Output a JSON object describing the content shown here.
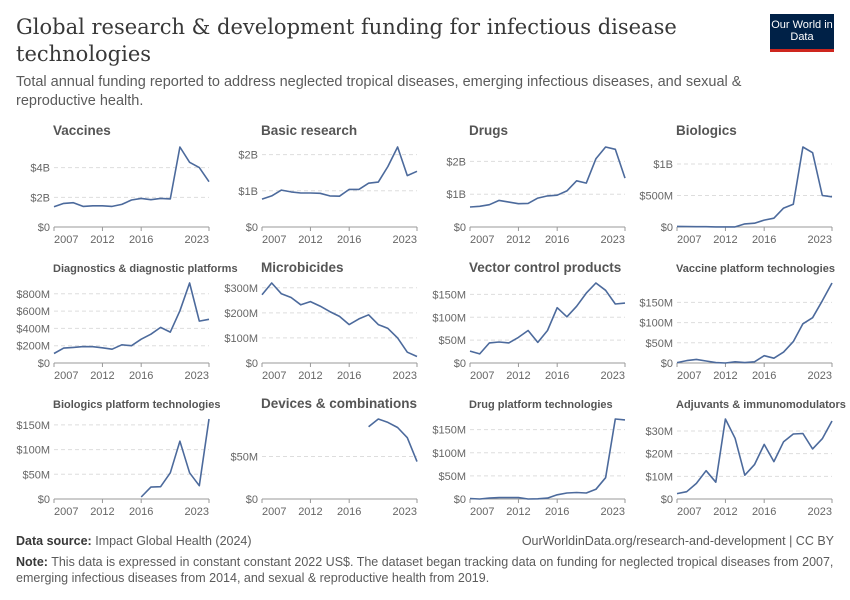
{
  "header": {
    "title": "Global research & development funding for infectious disease technologies",
    "subtitle": "Total annual funding reported to address neglected tropical diseases, emerging infectious diseases, and sexual & reproductive health.",
    "logo_text": "Our World in Data"
  },
  "footer": {
    "source_label": "Data source:",
    "source": "Impact Global Health (2024)",
    "url": "OurWorldinData.org/research-and-development | CC BY",
    "note_label": "Note:",
    "note": "This data is expressed in constant constant 2022 US$. The dataset began tracking data on funding for neglected tropical diseases from 2007, emerging infectious diseases from 2014, and sexual & reproductive health from 2019."
  },
  "colors": {
    "line": "#4c6a9c",
    "grid": "#dddddd",
    "axis": "#999999",
    "text": "#666666"
  },
  "chart_data": [
    {
      "type": "line",
      "title": "Vaccines",
      "x": [
        2007,
        2008,
        2009,
        2010,
        2011,
        2012,
        2013,
        2014,
        2015,
        2016,
        2017,
        2018,
        2019,
        2020,
        2021,
        2022,
        2023
      ],
      "values": [
        1360000000.0,
        1590000000.0,
        1640000000.0,
        1390000000.0,
        1430000000.0,
        1430000000.0,
        1390000000.0,
        1520000000.0,
        1820000000.0,
        1930000000.0,
        1840000000.0,
        1930000000.0,
        1890000000.0,
        5390000000.0,
        4360000000.0,
        4000000000.0,
        3050000000.0
      ],
      "yticks": [
        0,
        2000000000.0,
        4000000000.0
      ],
      "ytick_labels": [
        "$0",
        "$2B",
        "$4B"
      ],
      "xticks": [
        "2007",
        "2012",
        "2016",
        "2023"
      ]
    },
    {
      "type": "line",
      "title": "Basic research",
      "x": [
        2007,
        2008,
        2009,
        2010,
        2011,
        2012,
        2013,
        2014,
        2015,
        2016,
        2017,
        2018,
        2019,
        2020,
        2021,
        2022,
        2023
      ],
      "values": [
        770000000.0,
        860000000.0,
        1020000000.0,
        970000000.0,
        940000000.0,
        940000000.0,
        930000000.0,
        860000000.0,
        850000000.0,
        1040000000.0,
        1040000000.0,
        1210000000.0,
        1240000000.0,
        1670000000.0,
        2210000000.0,
        1420000000.0,
        1540000000.0
      ],
      "yticks": [
        0,
        1000000000.0,
        2000000000.0
      ],
      "ytick_labels": [
        "$0",
        "$1B",
        "$2B"
      ],
      "xticks": [
        "2007",
        "2012",
        "2016",
        "2023"
      ]
    },
    {
      "type": "line",
      "title": "Drugs",
      "x": [
        2007,
        2008,
        2009,
        2010,
        2011,
        2012,
        2013,
        2014,
        2015,
        2016,
        2017,
        2018,
        2019,
        2020,
        2021,
        2022,
        2023
      ],
      "values": [
        610000000.0,
        630000000.0,
        680000000.0,
        810000000.0,
        760000000.0,
        710000000.0,
        720000000.0,
        880000000.0,
        950000000.0,
        970000000.0,
        1100000000.0,
        1410000000.0,
        1340000000.0,
        2080000000.0,
        2440000000.0,
        2370000000.0,
        1490000000.0
      ],
      "yticks": [
        0,
        1000000000.0,
        2000000000.0
      ],
      "ytick_labels": [
        "$0",
        "$1B",
        "$2B"
      ],
      "xticks": [
        "2007",
        "2012",
        "2016",
        "2023"
      ]
    },
    {
      "type": "line",
      "title": "Biologics",
      "x": [
        2007,
        2008,
        2009,
        2010,
        2011,
        2012,
        2013,
        2014,
        2015,
        2016,
        2017,
        2018,
        2019,
        2020,
        2021,
        2022,
        2023
      ],
      "values": [
        10000000.0,
        8000000.0,
        5000000.0,
        4000000.0,
        2000000.0,
        1000000.0,
        1000000.0,
        50000000.0,
        60000000.0,
        110000000.0,
        140000000.0,
        300000000.0,
        360000000.0,
        1270000000.0,
        1180000000.0,
        500000000.0,
        480000000.0
      ],
      "yticks": [
        0,
        500000000.0,
        1000000000.0
      ],
      "ytick_labels": [
        "$0",
        "$500M",
        "$1B"
      ],
      "xticks": [
        "2007",
        "2012",
        "2016",
        "2023"
      ]
    },
    {
      "type": "line",
      "title": "Diagnostics & diagnostic platforms",
      "x": [
        2007,
        2008,
        2009,
        2010,
        2011,
        2012,
        2013,
        2014,
        2015,
        2016,
        2017,
        2018,
        2019,
        2020,
        2021,
        2022,
        2023
      ],
      "values": [
        110000000.0,
        172000000.0,
        180000000.0,
        190000000.0,
        188000000.0,
        176000000.0,
        160000000.0,
        210000000.0,
        200000000.0,
        275000000.0,
        333000000.0,
        412000000.0,
        357000000.0,
        604000000.0,
        925000000.0,
        485000000.0,
        505000000.0
      ],
      "yticks": [
        0,
        200000000.0,
        400000000.0,
        600000000.0,
        800000000.0
      ],
      "ytick_labels": [
        "$0",
        "$200M",
        "$400M",
        "$600M",
        "$800M"
      ],
      "xticks": [
        "2007",
        "2012",
        "2016",
        "2023"
      ]
    },
    {
      "type": "line",
      "title": "Microbicides",
      "x": [
        2007,
        2008,
        2009,
        2010,
        2011,
        2012,
        2013,
        2014,
        2015,
        2016,
        2017,
        2018,
        2019,
        2020,
        2021,
        2022,
        2023
      ],
      "values": [
        272000000.0,
        319000000.0,
        276000000.0,
        261000000.0,
        232000000.0,
        245000000.0,
        227000000.0,
        205000000.0,
        186000000.0,
        153000000.0,
        176000000.0,
        192000000.0,
        153000000.0,
        138000000.0,
        100000000.0,
        43000000.0,
        26000000.0
      ],
      "yticks": [
        0,
        100000000.0,
        200000000.0,
        300000000.0
      ],
      "ytick_labels": [
        "$0",
        "$100M",
        "$200M",
        "$300M"
      ],
      "xticks": [
        "2007",
        "2012",
        "2016",
        "2023"
      ]
    },
    {
      "type": "line",
      "title": "Vector control products",
      "x": [
        2007,
        2008,
        2009,
        2010,
        2011,
        2012,
        2013,
        2014,
        2015,
        2016,
        2017,
        2018,
        2019,
        2020,
        2021,
        2022,
        2023
      ],
      "values": [
        26000000.0,
        20000000.0,
        44000000.0,
        46000000.0,
        44000000.0,
        56000000.0,
        71000000.0,
        45000000.0,
        71000000.0,
        121000000.0,
        101000000.0,
        124000000.0,
        153000000.0,
        175000000.0,
        159000000.0,
        129000000.0,
        131000000.0
      ],
      "yticks": [
        0,
        50000000.0,
        100000000.0,
        150000000.0
      ],
      "ytick_labels": [
        "$0",
        "$50M",
        "$100M",
        "$150M"
      ],
      "xticks": [
        "2007",
        "2012",
        "2016",
        "2023"
      ]
    },
    {
      "type": "line",
      "title": "Vaccine platform technologies",
      "x": [
        2007,
        2008,
        2009,
        2010,
        2011,
        2012,
        2013,
        2014,
        2015,
        2016,
        2017,
        2018,
        2019,
        2020,
        2021,
        2022,
        2023
      ],
      "values": [
        1000000.0,
        6000000.0,
        9000000.0,
        5000000.0,
        1000000.0,
        0,
        3000000.0,
        1000000.0,
        3000000.0,
        18000000.0,
        12000000.0,
        27000000.0,
        53000000.0,
        97000000.0,
        112000000.0,
        154000000.0,
        198000000.0
      ],
      "yticks": [
        0,
        50000000.0,
        100000000.0,
        150000000.0
      ],
      "ytick_labels": [
        "$0",
        "$50M",
        "$100M",
        "$150M"
      ],
      "xticks": [
        "2007",
        "2012",
        "2016",
        "2023"
      ]
    },
    {
      "type": "line",
      "title": "Biologics platform technologies",
      "x": [
        2016,
        2017,
        2018,
        2019,
        2020,
        2021,
        2022,
        2023
      ],
      "values": [
        4000000.0,
        24000000.0,
        25000000.0,
        53000000.0,
        117000000.0,
        53000000.0,
        27000000.0,
        162000000.0
      ],
      "yticks": [
        0,
        50000000.0,
        100000000.0,
        150000000.0
      ],
      "ytick_labels": [
        "$0",
        "$50M",
        "$100M",
        "$150M"
      ],
      "xticks": [
        "2007",
        "2012",
        "2016",
        "2023"
      ]
    },
    {
      "type": "line",
      "title": "Devices & combinations",
      "x": [
        2018,
        2019,
        2020,
        2021,
        2022,
        2023
      ],
      "values": [
        85000000.0,
        94000000.0,
        90000000.0,
        84000000.0,
        72000000.0,
        44000000.0
      ],
      "yticks": [
        0,
        50000000.0
      ],
      "ytick_labels": [
        "$0",
        "$50M"
      ],
      "xticks": [
        "2007",
        "2012",
        "2016",
        "2023"
      ]
    },
    {
      "type": "line",
      "title": "Drug platform technologies",
      "x": [
        2007,
        2008,
        2009,
        2010,
        2011,
        2012,
        2013,
        2014,
        2015,
        2016,
        2017,
        2018,
        2019,
        2020,
        2021,
        2022,
        2023
      ],
      "values": [
        1000000.0,
        0,
        2000000.0,
        3000000.0,
        3000000.0,
        3000000.0,
        0,
        500000.0,
        2000000.0,
        9000000.0,
        13000000.0,
        14000000.0,
        13000000.0,
        21000000.0,
        46000000.0,
        173000000.0,
        171000000.0
      ],
      "yticks": [
        0,
        50000000.0,
        100000000.0,
        150000000.0
      ],
      "ytick_labels": [
        "$0",
        "$50M",
        "$100M",
        "$150M"
      ],
      "xticks": [
        "2007",
        "2012",
        "2016",
        "2023"
      ]
    },
    {
      "type": "line",
      "title": "Adjuvants & immunomodulators",
      "x": [
        2007,
        2008,
        2009,
        2010,
        2011,
        2012,
        2013,
        2014,
        2015,
        2016,
        2017,
        2018,
        2019,
        2020,
        2021,
        2022,
        2023
      ],
      "values": [
        2400000.0,
        3200000.0,
        6900000.0,
        12500000.0,
        7400000.0,
        35300000.0,
        26800000.0,
        10500000.0,
        15200000.0,
        24100000.0,
        16500000.0,
        25300000.0,
        28700000.0,
        28900000.0,
        22100000.0,
        26600000.0,
        34400000.0
      ],
      "yticks": [
        0,
        10000000.0,
        20000000.0,
        30000000.0
      ],
      "ytick_labels": [
        "$0",
        "$10M",
        "$20M",
        "$30M"
      ],
      "xticks": [
        "2007",
        "2012",
        "2016",
        "2023"
      ]
    }
  ]
}
